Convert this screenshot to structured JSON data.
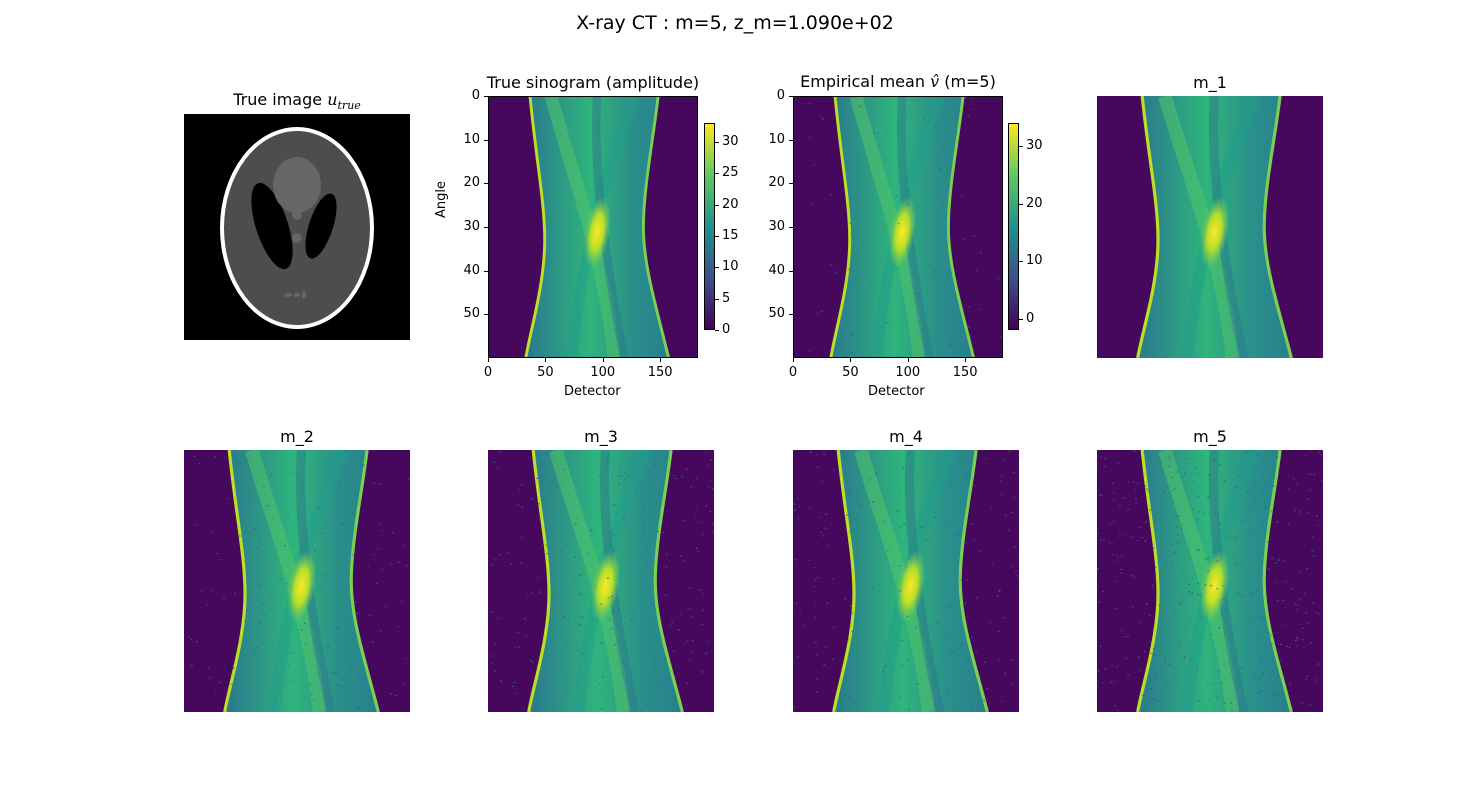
{
  "suptitle": "X-ray CT : m=5, z_m=1.090e+02",
  "colors": {
    "viridis_low": "#440154",
    "viridis_midlow": "#3b528b",
    "viridis_mid": "#21918c",
    "viridis_midhigh": "#5ec962",
    "viridis_high": "#fde725",
    "background_dark": "#46085c",
    "phantom_gray": "#4d4d4d",
    "phantom_rim": "#ffffff"
  },
  "panels": {
    "true_image": {
      "title_prefix": "True image ",
      "title_var": "u",
      "title_sub": "true"
    },
    "true_sinogram": {
      "title": "True sinogram (amplitude)",
      "xlabel": "Detector",
      "ylabel": "Angle"
    },
    "empirical_mean": {
      "title_prefix": "Empirical mean ",
      "title_var": "v̂",
      "title_suffix": " (m=5)",
      "xlabel": "Detector"
    },
    "m1": {
      "title": "m_1"
    },
    "m2": {
      "title": "m_2"
    },
    "m3": {
      "title": "m_3"
    },
    "m4": {
      "title": "m_4"
    },
    "m5": {
      "title": "m_5"
    }
  },
  "chart_data": [
    {
      "type": "heatmap",
      "name": "true_image",
      "title": "True image u_true",
      "content": "Shepp-Logan phantom"
    },
    {
      "type": "heatmap",
      "name": "true_sinogram",
      "title": "True sinogram (amplitude)",
      "xlabel": "Detector",
      "ylabel": "Angle",
      "xlim": [
        0,
        183
      ],
      "ylim": [
        60,
        0
      ],
      "xticks": [
        0,
        50,
        100,
        150
      ],
      "yticks": [
        0,
        10,
        20,
        30,
        40,
        50
      ],
      "colorbar": {
        "range": [
          0,
          33
        ],
        "ticks": [
          0,
          5,
          10,
          15,
          20,
          25,
          30
        ]
      }
    },
    {
      "type": "heatmap",
      "name": "empirical_mean",
      "title": "Empirical mean v̂ (m=5)",
      "xlabel": "Detector",
      "xlim": [
        0,
        183
      ],
      "ylim": [
        60,
        0
      ],
      "xticks": [
        0,
        50,
        100,
        150
      ],
      "yticks": [
        0,
        10,
        20,
        30,
        40,
        50
      ],
      "colorbar": {
        "range": [
          -2,
          34
        ],
        "ticks": [
          0,
          10,
          20,
          30
        ]
      }
    },
    {
      "type": "heatmap",
      "name": "m_1",
      "title": "m_1",
      "noise": 0
    },
    {
      "type": "heatmap",
      "name": "m_2",
      "title": "m_2",
      "noise": 0.05
    },
    {
      "type": "heatmap",
      "name": "m_3",
      "title": "m_3",
      "noise": 0.08
    },
    {
      "type": "heatmap",
      "name": "m_4",
      "title": "m_4",
      "noise": 0.07
    },
    {
      "type": "heatmap",
      "name": "m_5",
      "title": "m_5",
      "noise": 0.14
    }
  ]
}
